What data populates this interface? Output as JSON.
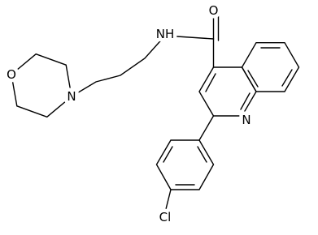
{
  "atoms": [
    "O",
    "NH",
    "N",
    "N",
    "O",
    "Cl"
  ]
}
